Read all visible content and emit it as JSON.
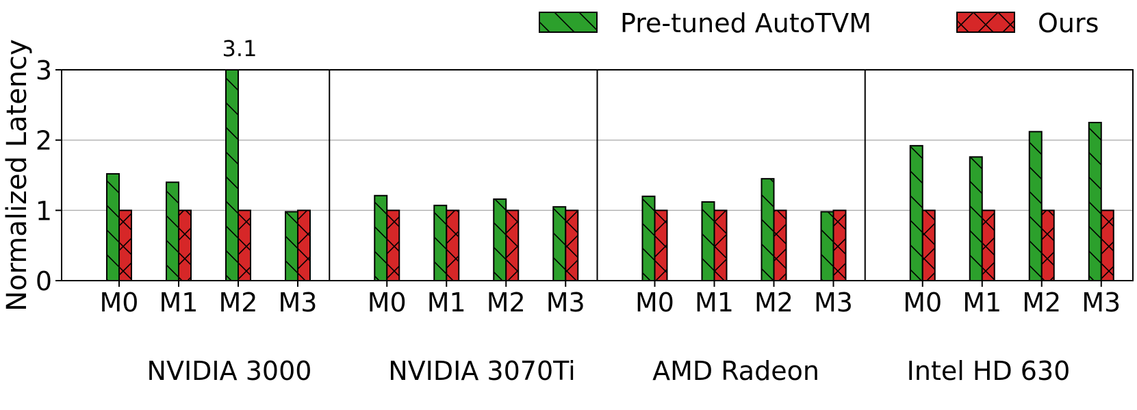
{
  "chart_data": {
    "type": "bar",
    "ylabel": "Normalized Latency",
    "ylim": [
      0,
      3
    ],
    "yticks": [
      "0",
      "1",
      "2",
      "3"
    ],
    "grid": "horizontal",
    "legend_position": "top-right",
    "colors": {
      "Pre-tuned AutoTVM": "#2ca02c",
      "Ours": "#d62728"
    },
    "groups": [
      {
        "name": "NVIDIA 3000",
        "categories": [
          "M0",
          "M1",
          "M2",
          "M3"
        ],
        "series": [
          {
            "name": "Pre-tuned AutoTVM",
            "values": [
              1.52,
              1.4,
              3.1,
              0.98
            ]
          },
          {
            "name": "Ours",
            "values": [
              1.0,
              1.0,
              1.0,
              1.0
            ]
          }
        ]
      },
      {
        "name": "NVIDIA 3070Ti",
        "categories": [
          "M0",
          "M1",
          "M2",
          "M3"
        ],
        "series": [
          {
            "name": "Pre-tuned AutoTVM",
            "values": [
              1.21,
              1.07,
              1.16,
              1.05
            ]
          },
          {
            "name": "Ours",
            "values": [
              1.0,
              1.0,
              1.0,
              1.0
            ]
          }
        ]
      },
      {
        "name": "AMD Radeon",
        "categories": [
          "M0",
          "M1",
          "M2",
          "M3"
        ],
        "series": [
          {
            "name": "Pre-tuned AutoTVM",
            "values": [
              1.2,
              1.12,
              1.45,
              0.98
            ]
          },
          {
            "name": "Ours",
            "values": [
              1.0,
              1.0,
              1.0,
              1.0
            ]
          }
        ]
      },
      {
        "name": "Intel HD 630",
        "categories": [
          "M0",
          "M1",
          "M2",
          "M3"
        ],
        "series": [
          {
            "name": "Pre-tuned AutoTVM",
            "values": [
              1.92,
              1.76,
              2.12,
              2.25
            ]
          },
          {
            "name": "Ours",
            "values": [
              1.0,
              1.0,
              1.0,
              1.0
            ]
          }
        ]
      }
    ],
    "annotations": [
      {
        "text": "3.1",
        "group": 0,
        "category": "M2"
      }
    ]
  }
}
